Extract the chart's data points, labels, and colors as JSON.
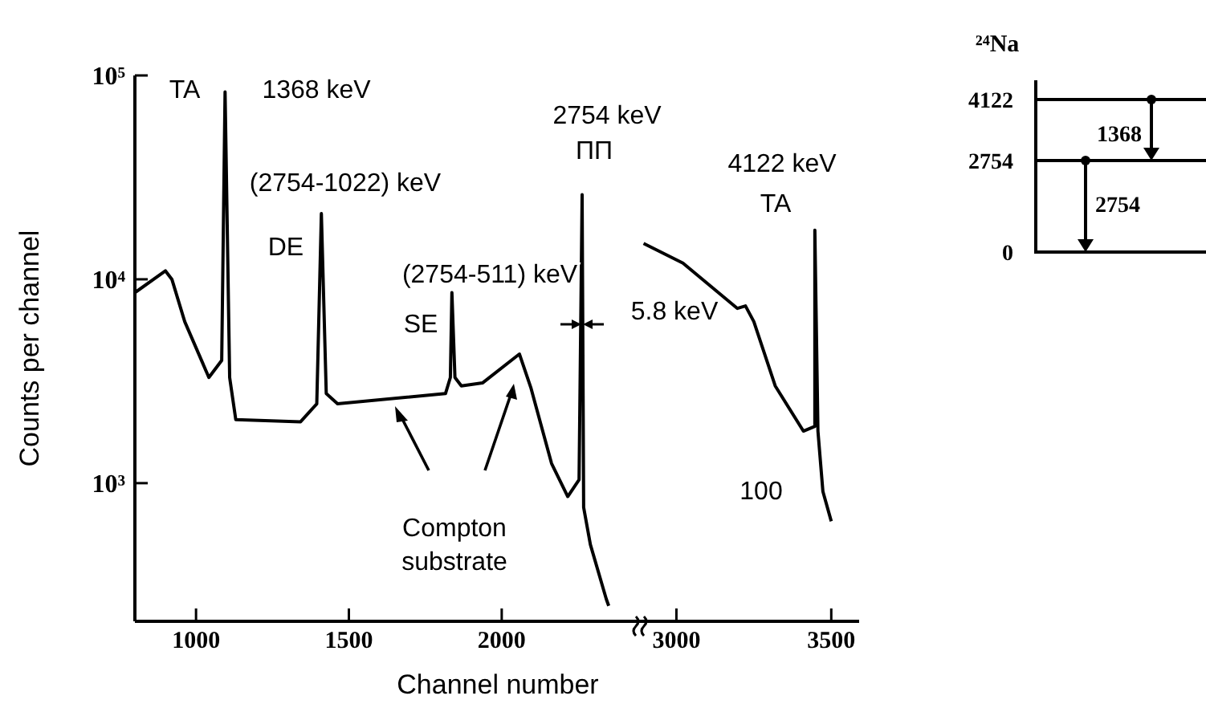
{
  "chart_data": [
    {
      "type": "line",
      "ylabel": "Counts per channel",
      "xlabel": "Channel number",
      "log": "y",
      "xlim": [
        800,
        2460
      ],
      "xticks": [
        1000,
        1500,
        2000
      ],
      "ylim": [
        210,
        100000
      ],
      "yticks": [
        {
          "value": 1000,
          "label": "10³"
        },
        {
          "value": 10000,
          "label": "10⁴"
        },
        {
          "value": 100000,
          "label": "10⁵"
        }
      ],
      "series": [
        {
          "color": "#000000",
          "x": [
            800,
            900,
            921,
            963,
            1042,
            1084,
            1095,
            1110,
            1130,
            1342,
            1395,
            1410,
            1426,
            1463,
            1816,
            1832,
            1837,
            1847,
            1868,
            1937,
            2058,
            2095,
            2163,
            2216,
            2253,
            2263,
            2268,
            2290,
            2342,
            2350
          ],
          "values": [
            8600,
            11000,
            10000,
            6200,
            3300,
            4000,
            83000,
            3300,
            2050,
            2000,
            2450,
            21000,
            2750,
            2450,
            2750,
            3300,
            8600,
            3300,
            3000,
            3100,
            4300,
            2950,
            1250,
            860,
            1040,
            26000,
            760,
            500,
            270,
            250
          ]
        }
      ],
      "annotations": [
        "TA",
        "1368 keV",
        "(2754-1022) keV",
        "DE",
        "(2754-511) keV",
        "SE",
        "2754 keV",
        "ПП",
        "Compton\nsubstrate"
      ]
    },
    {
      "type": "line",
      "tick_labels": "x",
      "log": "y",
      "xlim": [
        2890,
        3590
      ],
      "xticks": [
        3000,
        3500
      ],
      "ylim": [
        210,
        100000
      ],
      "series": [
        {
          "color": "#000000",
          "x": [
            2894,
            3021,
            3197,
            3223,
            3250,
            3319,
            3410,
            3447,
            3447,
            3457,
            3473,
            3500
          ],
          "values": [
            15000,
            12000,
            7200,
            7400,
            6200,
            3000,
            1800,
            1900,
            17400,
            1800,
            910,
            650
          ]
        }
      ],
      "annotations": [
        "5.8 keV",
        "4122 keV",
        "TA",
        "100"
      ]
    },
    {
      "type": "other",
      "title": "²⁴Na",
      "annotations": [
        "4122",
        "2754",
        "0",
        "1368",
        "2754"
      ]
    }
  ]
}
